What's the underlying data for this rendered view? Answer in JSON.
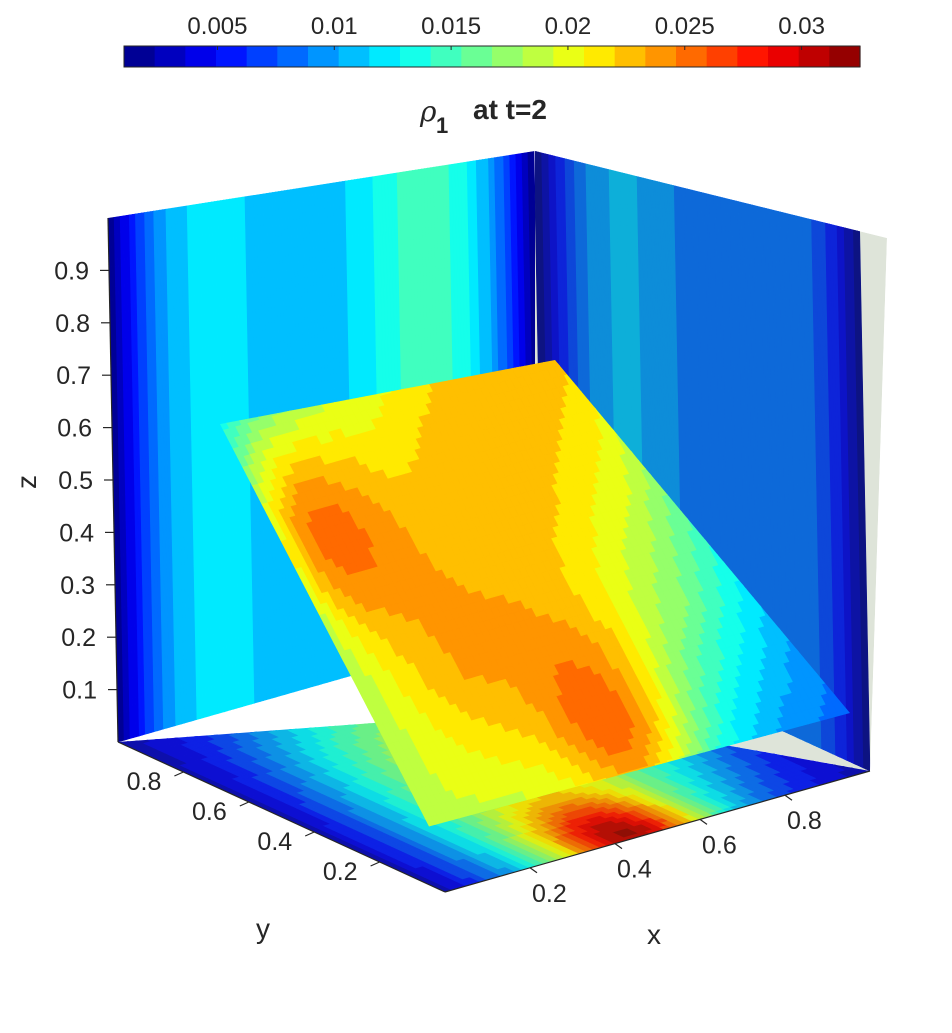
{
  "chart_data": {
    "type": "heatmap",
    "subtype": "3d-slice-contour",
    "title": {
      "symbol": "ρ",
      "subscript": "1",
      "text": "at  t=2"
    },
    "xlabel": "x",
    "ylabel": "y",
    "zlabel": "z",
    "x_ticks": [
      "0.2",
      "0.4",
      "0.6",
      "0.8"
    ],
    "y_ticks": [
      "0.2",
      "0.4",
      "0.6",
      "0.8"
    ],
    "z_ticks": [
      "0.1",
      "0.2",
      "0.3",
      "0.4",
      "0.5",
      "0.6",
      "0.7",
      "0.8",
      "0.9"
    ],
    "xlim": [
      0,
      1
    ],
    "ylim": [
      0,
      1
    ],
    "zlim": [
      0,
      1
    ],
    "colormap": "jet",
    "colorbar": {
      "location": "top",
      "ticks": [
        "0.005",
        "0.01",
        "0.015",
        "0.02",
        "0.025",
        "0.03"
      ],
      "tick_values": [
        0.005,
        0.01,
        0.015,
        0.02,
        0.025,
        0.03
      ],
      "range": [
        0.001,
        0.0325
      ],
      "levels": 24
    },
    "slices": [
      {
        "name": "back wall (y = 1)",
        "varies_along": "x",
        "field": "side-x"
      },
      {
        "name": "right wall (x = 1)",
        "varies_along": "y",
        "field": "side-y"
      },
      {
        "name": "floor (z = 0)",
        "varies_along": "x,y",
        "field": "floor"
      },
      {
        "name": "oblique plane (z = 0.95·y)",
        "varies_along": "x,y",
        "field": "oblique"
      }
    ]
  }
}
